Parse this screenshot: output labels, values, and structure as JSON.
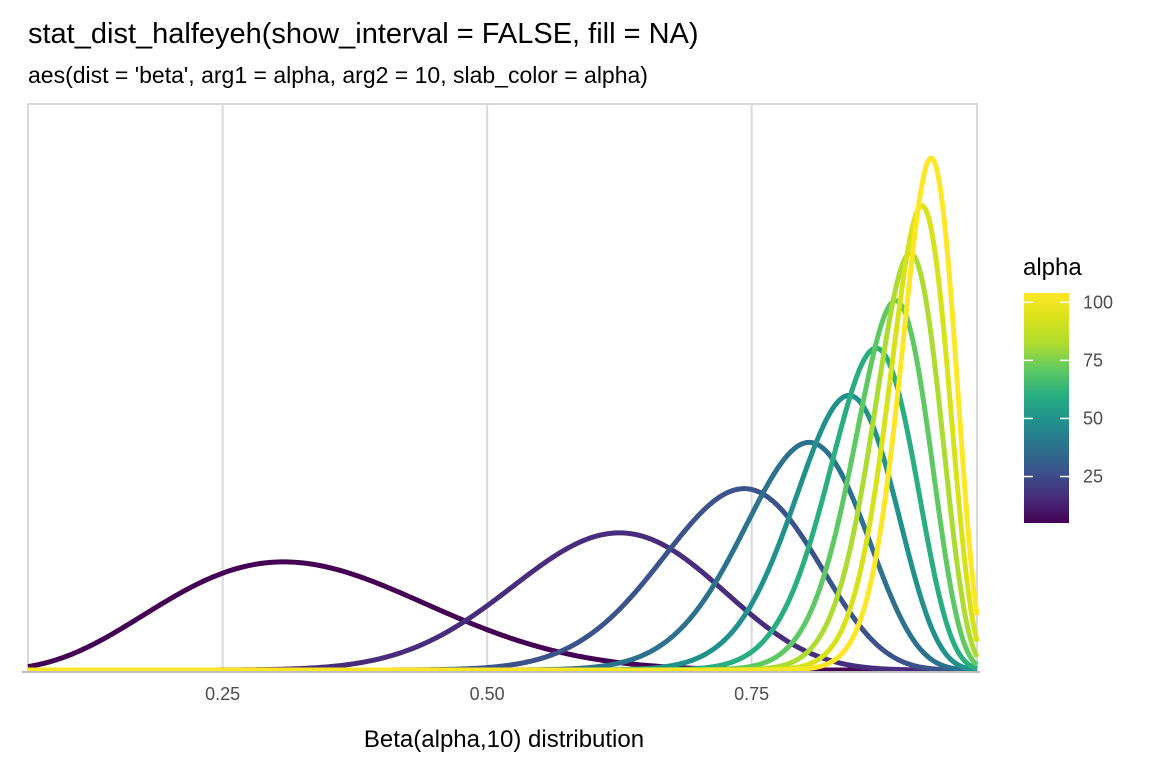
{
  "chart_data": {
    "type": "line",
    "title": "stat_dist_halfeyeh(show_interval = FALSE, fill = NA)",
    "subtitle": "aes(dist = 'beta', arg1 = alpha, arg2 = 10, slab_color = alpha)",
    "xlabel": "Beta(alpha,10) distribution",
    "ylabel": "",
    "xlim": [
      0.066,
      0.963
    ],
    "x_ticks": [
      0.25,
      0.5,
      0.75
    ],
    "x_tick_labels": [
      "0.25",
      "0.50",
      "0.75"
    ],
    "grid": true,
    "distribution": "beta",
    "beta_param": 10,
    "series": [
      {
        "alpha": 5,
        "color": "#440154"
      },
      {
        "alpha": 16,
        "color": "#472d7b"
      },
      {
        "alpha": 27,
        "color": "#3b528b"
      },
      {
        "alpha": 38,
        "color": "#2c728e"
      },
      {
        "alpha": 49,
        "color": "#21918c"
      },
      {
        "alpha": 60,
        "color": "#28ae80"
      },
      {
        "alpha": 71,
        "color": "#5ec962"
      },
      {
        "alpha": 82,
        "color": "#addc30"
      },
      {
        "alpha": 93,
        "color": "#d8e219"
      },
      {
        "alpha": 104,
        "color": "#fde725"
      }
    ],
    "legend": {
      "title": "alpha",
      "position": "right",
      "ticks": [
        25,
        50,
        75,
        100
      ],
      "tick_labels": [
        "25",
        "50",
        "75",
        "100"
      ],
      "range": [
        5,
        104
      ],
      "colors": [
        "#440154",
        "#472d7b",
        "#3b528b",
        "#2c728e",
        "#21918c",
        "#28ae80",
        "#5ec962",
        "#addc30",
        "#d8e219",
        "#fde725"
      ]
    }
  }
}
